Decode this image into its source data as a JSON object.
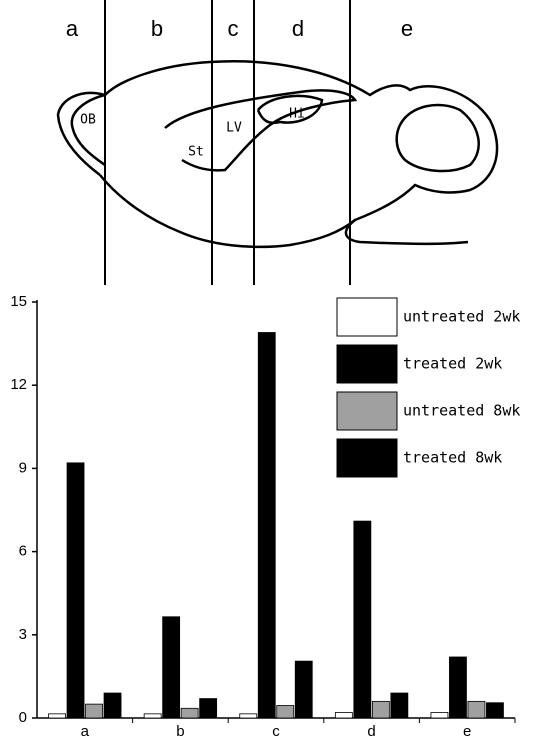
{
  "diagram": {
    "sections": [
      "a",
      "b",
      "c",
      "d",
      "e"
    ],
    "regions": [
      "OB",
      "St",
      "LV",
      "Hi"
    ]
  },
  "chart_data": {
    "type": "bar",
    "categories": [
      "a",
      "b",
      "c",
      "d",
      "e"
    ],
    "series": [
      {
        "name": "untreated 2wk",
        "color": "#ffffff",
        "values": [
          0.15,
          0.15,
          0.15,
          0.2,
          0.2
        ]
      },
      {
        "name": "treated 2wk",
        "color": "#000000",
        "values": [
          9.2,
          3.65,
          13.9,
          7.1,
          2.2
        ]
      },
      {
        "name": "untreated 8wk",
        "color": "#a0a0a0",
        "values": [
          0.5,
          0.35,
          0.45,
          0.6,
          0.6
        ]
      },
      {
        "name": "treated 8wk",
        "color": "#000000",
        "values": [
          0.9,
          0.7,
          2.05,
          0.9,
          0.55
        ]
      }
    ],
    "ylim": [
      0,
      15
    ],
    "yticks": [
      0,
      3,
      6,
      9,
      12,
      15
    ],
    "legend": "top-right"
  }
}
